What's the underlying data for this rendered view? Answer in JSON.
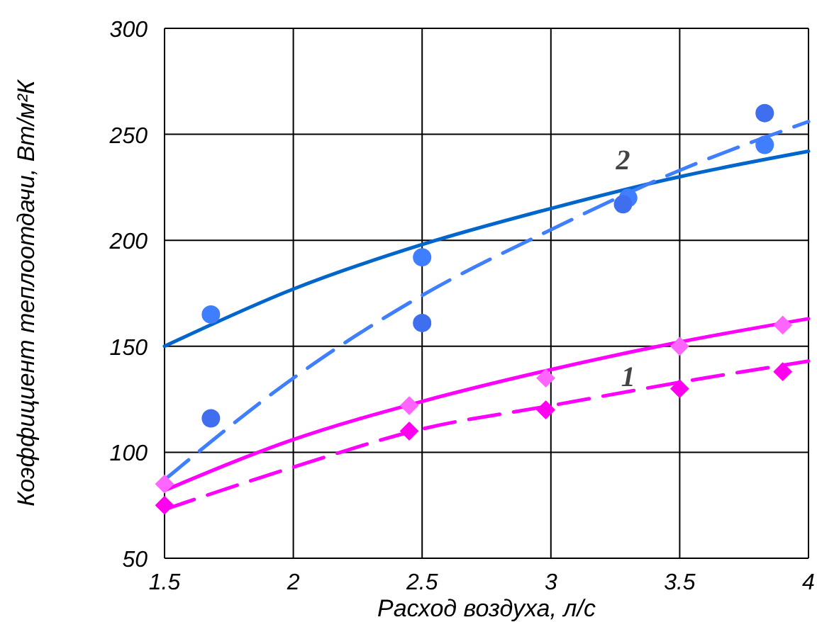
{
  "chart_data": {
    "type": "line",
    "xlabel": "Расход воздуха, л/с",
    "ylabel": "Коэффициент теплоотдачи, Вт/м²К",
    "xlim": [
      1.5,
      4
    ],
    "xticks": [
      1.5,
      2,
      2.5,
      3,
      3.5,
      4
    ],
    "ylim": [
      50,
      300
    ],
    "yticks": [
      50,
      100,
      150,
      200,
      250,
      300
    ],
    "grid": true,
    "series": [
      {
        "color": "#0066cc",
        "line_style": "solid",
        "marker": "none",
        "x": [
          1.5,
          2,
          2.5,
          3,
          3.5,
          4
        ],
        "values": [
          150,
          177,
          198,
          215,
          230,
          242
        ]
      },
      {
        "color": "#3f7fff",
        "line_style": "dashed",
        "marker": "none",
        "x": [
          1.5,
          2,
          2.5,
          3,
          3.5,
          4
        ],
        "values": [
          87,
          135,
          174,
          205,
          233,
          256
        ]
      },
      {
        "color": "#ff00ff",
        "line_style": "solid",
        "marker": "none",
        "x": [
          1.5,
          2,
          2.5,
          3,
          3.5,
          4
        ],
        "values": [
          82,
          106,
          124,
          139,
          152,
          163
        ]
      },
      {
        "color": "#ff00ff",
        "line_style": "dashed",
        "marker": "none",
        "x": [
          1.5,
          2,
          2.5,
          3,
          3.5,
          4
        ],
        "values": [
          73,
          93,
          111,
          122,
          133,
          143
        ]
      },
      {
        "type": "scatter",
        "color": "#3f7fff",
        "marker": "circle",
        "x": [
          1.68,
          2.5,
          3.3,
          3.83
        ],
        "values": [
          165,
          192,
          220,
          245
        ]
      },
      {
        "type": "scatter",
        "color": "#3f6fef",
        "marker": "circle",
        "x": [
          1.68,
          2.5,
          3.28,
          3.83
        ],
        "values": [
          116,
          161,
          217,
          260
        ]
      },
      {
        "type": "scatter",
        "color": "#ff66ff",
        "marker": "diamond",
        "x": [
          1.5,
          2.45,
          2.98,
          3.5,
          3.9
        ],
        "values": [
          85,
          122,
          135,
          150,
          160
        ]
      },
      {
        "type": "scatter",
        "color": "#ff00ee",
        "marker": "diamond",
        "x": [
          1.5,
          2.45,
          2.98,
          3.5,
          3.9
        ],
        "values": [
          75,
          110,
          120,
          130,
          138
        ]
      }
    ],
    "annotations": [
      {
        "text": "1",
        "x": 3.3,
        "y": 146
      },
      {
        "text": "2",
        "x": 3.28,
        "y": 224
      }
    ]
  }
}
